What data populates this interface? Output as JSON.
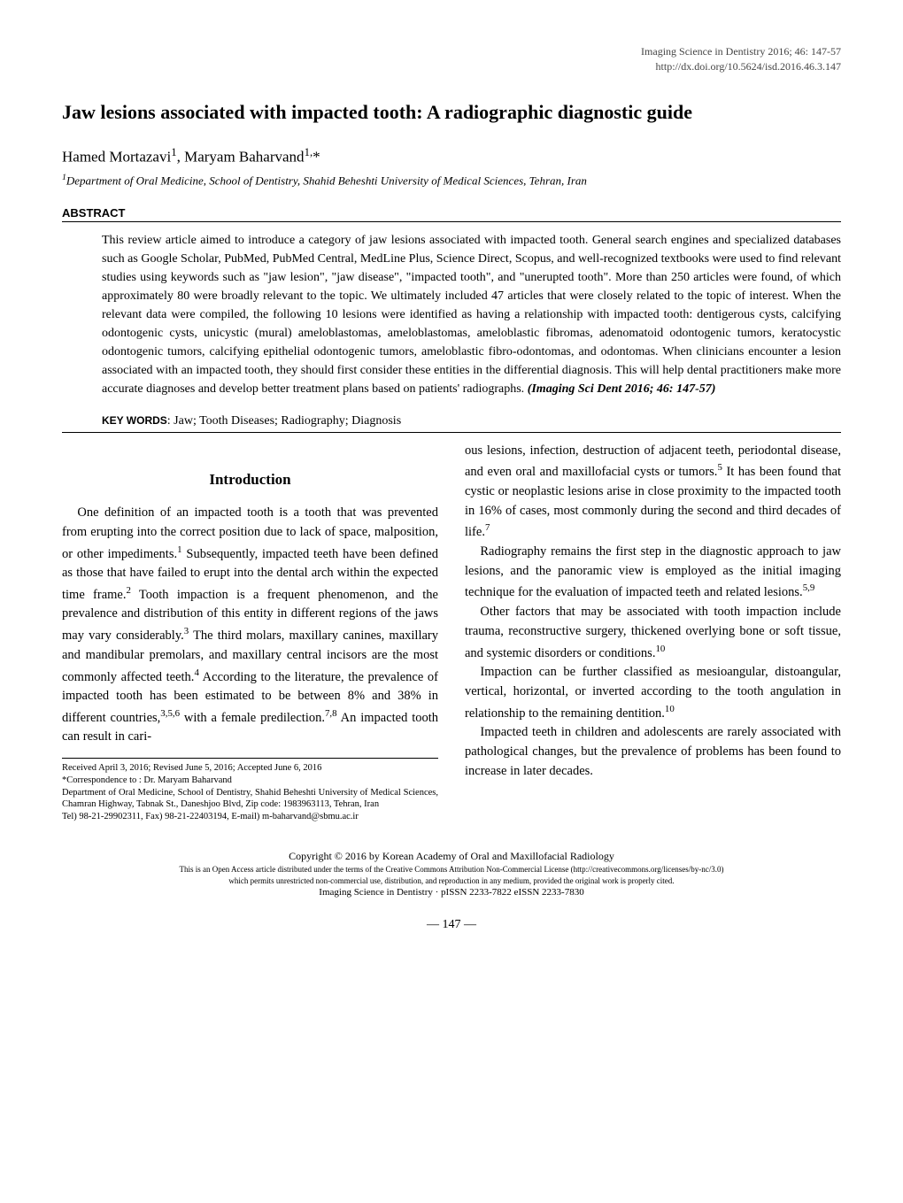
{
  "journal_header": {
    "line1": "Imaging Science in Dentistry 2016; 46: 147-57",
    "line2": "http://dx.doi.org/10.5624/isd.2016.46.3.147"
  },
  "title": "Jaw lesions associated with impacted tooth: A radiographic diagnostic guide",
  "authors_html": "Hamed Mortazavi<sup>1</sup>, Maryam Baharvand<sup>1,</sup>*",
  "affiliation_html": "<sup>1</sup><i>Department of Oral Medicine, School of Dentistry, Shahid Beheshti University of Medical Sciences, Tehran, Iran</i>",
  "abstract": {
    "heading": "ABSTRACT",
    "body_html": "This review article aimed to introduce a category of jaw lesions associated with impacted tooth. General search engines and specialized databases such as Google Scholar, PubMed, PubMed Central, MedLine Plus, Science Direct, Scopus, and well-recognized textbooks were used to find relevant studies using keywords such as \"jaw lesion\", \"jaw disease\", \"impacted tooth\", and \"unerupted tooth\". More than 250 articles were found, of which approximately 80 were broadly relevant to the topic. We ultimately included 47 articles that were closely related to the topic of interest. When the relevant data were compiled, the following 10 lesions were identified as having a relationship with impacted tooth: dentigerous cysts, calcifying odontogenic cysts, unicystic (mural) ameloblastomas, ameloblastomas, ameloblastic fibromas, adenomatoid odontogenic tumors, keratocystic odontogenic tumors, calcifying epithelial odontogenic tumors, ameloblastic fibro-odontomas, and odontomas. When clinicians encounter a lesion associated with an impacted tooth, they should first consider these entities in the differential diagnosis. This will help dental practitioners make more accurate diagnoses and develop better treatment plans based on patients' radiographs. <span class=\"bold-ital\">(Imaging Sci Dent 2016; 46: 147-57)</span>",
    "keywords_label": "KEY WORDS",
    "keywords_text": ": Jaw; Tooth Diseases; Radiography; Diagnosis"
  },
  "intro_heading": "Introduction",
  "left_paragraphs": [
    "One definition of an impacted tooth is a tooth that was prevented from erupting into the correct position due to lack of space, malposition, or other impediments.<sup>1</sup> Subsequently, impacted teeth have been defined as those that have failed to erupt into the dental arch within the expected time frame.<sup>2</sup> Tooth impaction is a frequent phenomenon, and the prevalence and distribution of this entity in different regions of the jaws may vary considerably.<sup>3</sup> The third molars, maxillary canines, maxillary and mandibular premolars, and maxillary central incisors are the most commonly affected teeth.<sup>4</sup> According to the literature, the prevalence of impacted tooth has been estimated to be between 8% and 38% in different countries,<sup>3,5,6</sup> with a female predilection.<sup>7,8</sup> An impacted tooth can result in cari-"
  ],
  "right_paragraphs": [
    "ous lesions, infection, destruction of adjacent teeth, periodontal disease, and even oral and maxillofacial cysts or tumors.<sup>5</sup> It has been found that cystic or neoplastic lesions arise in close proximity to the impacted tooth in 16% of cases, most commonly during the second and third decades of life.<sup>7</sup>",
    "Radiography remains the first step in the diagnostic approach to jaw lesions, and the panoramic view is employed as the initial imaging technique for the evaluation of impacted teeth and related lesions.<sup>5,9</sup>",
    "Other factors that may be associated with tooth impaction include trauma, reconstructive surgery, thickened overlying bone or soft tissue, and systemic disorders or conditions.<sup>10</sup>",
    "Impaction can be further classified as mesioangular, distoangular, vertical, horizontal, or inverted according to the tooth angulation in relationship to the remaining dentition.<sup>10</sup>",
    "Impacted teeth in children and adolescents are rarely associated with pathological changes, but the prevalence of problems has been found to increase in later decades."
  ],
  "footnotes": [
    "Received April 3, 2016; Revised June 5, 2016; Accepted June 6, 2016",
    "*Correspondence to : Dr. Maryam Baharvand",
    "Department of Oral Medicine, School of Dentistry, Shahid Beheshti University of Medical Sciences, Chamran Highway, Tabnak St., Daneshjoo Blvd, Zip code: 1983963113, Tehran, Iran",
    "Tel) 98-21-29902311, Fax) 98-21-22403194, E-mail) m-baharvand@sbmu.ac.ir"
  ],
  "copyright": {
    "line1": "Copyright © 2016 by Korean Academy of Oral and Maxillofacial Radiology",
    "line2": "This is an Open Access article distributed under the terms of the Creative Commons Attribution Non-Commercial License (http://creativecommons.org/licenses/by-nc/3.0)",
    "line3": "which permits unrestricted non-commercial use, distribution, and reproduction in any medium, provided the original work is properly cited.",
    "line4": "Imaging Science in Dentistry · pISSN 2233-7822 eISSN 2233-7830"
  },
  "page_number": "— 147 —"
}
